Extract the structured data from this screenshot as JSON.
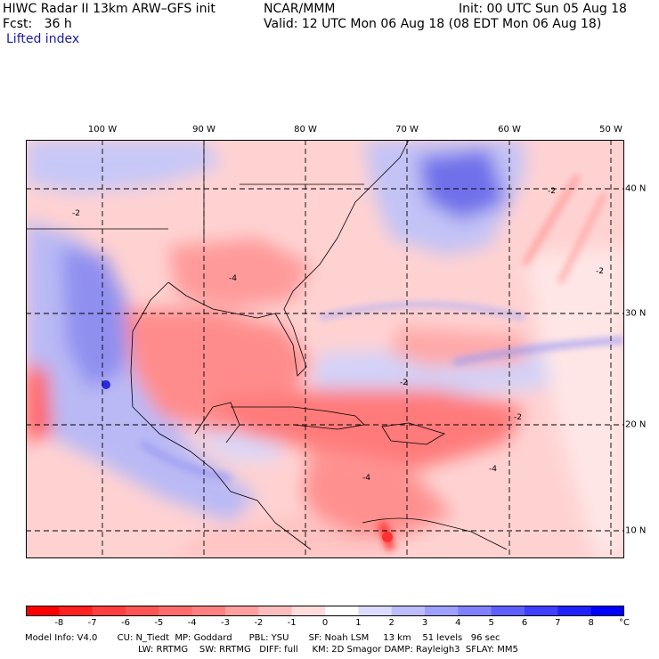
{
  "header": {
    "title": "HIWC Radar II 13km ARW–GFS init",
    "org": "NCAR/MMM",
    "init": "Init: 00 UTC Sun 05 Aug 18",
    "fcst": "Fcst:   36 h",
    "valid": "Valid: 12 UTC Mon 06 Aug 18 (08 EDT Mon 06 Aug 18)",
    "field": "Lifted index"
  },
  "map": {
    "lon_labels": [
      "100 W",
      "90 W",
      "80 W",
      "70 W",
      "60 W",
      "50 W"
    ],
    "lat_labels": [
      "40 N",
      "30 N",
      "20 N",
      "10 N"
    ],
    "contour_labels": [
      "-2",
      "-2",
      "-4",
      "-4",
      "-2",
      "-2",
      "-2",
      "-4"
    ]
  },
  "colorbar": {
    "ticks": [
      "-8",
      "-7",
      "-6",
      "-5",
      "-4",
      "-3",
      "-2",
      "-1",
      "0",
      "1",
      "2",
      "3",
      "4",
      "5",
      "6",
      "7",
      "8"
    ],
    "unit": "°C",
    "colors": [
      "#ff0000",
      "#ff2020",
      "#ff3f3f",
      "#ff5555",
      "#ff6c6c",
      "#ff8080",
      "#ff9f9f",
      "#ffbcbc",
      "#ffdcdc",
      "#ffffff",
      "#dcdcff",
      "#bcbcff",
      "#9f9fff",
      "#8080ff",
      "#5f5fff",
      "#3f3fff",
      "#2020ff",
      "#0000ff"
    ]
  },
  "model_info": {
    "line1": "Model Info: V4.0       CU: N_Tiedt  MP: Goddard      PBL: YSU       SF: Noah LSM     13 km    51 levels   96 sec",
    "line2": "LW: RRTMG    SW: RRTMG   DIFF: full     KM: 2D Smagor DAMP: Rayleigh3  SFLAY: MM5"
  }
}
